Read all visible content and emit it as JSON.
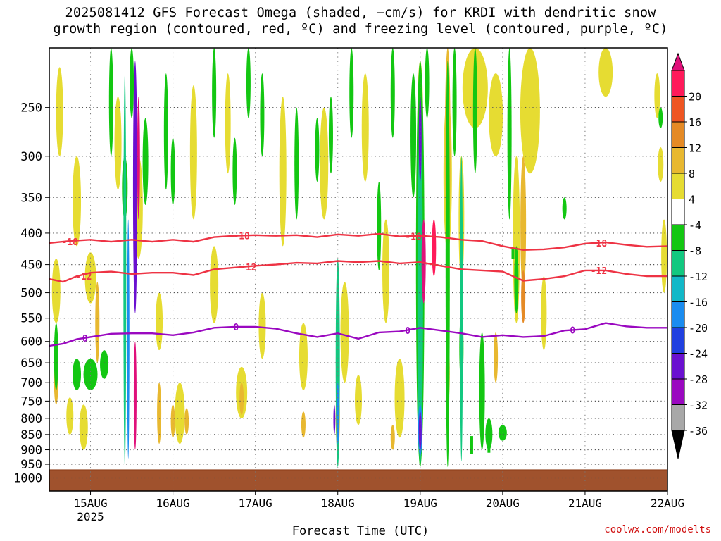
{
  "title": {
    "line1": "2025081412 GFS Forecast Omega (shaded, −cm/s) for KRDI with dendritic snow",
    "line2": "growth region (contoured, red, ºC) and freezing level (contoured, purple, ºC)"
  },
  "watermark": "coolwx.com/modelts",
  "chart_data": {
    "type": "heatmap",
    "title": "2025081412 GFS Forecast Omega (shaded, −cm/s) for KRDI with dendritic snow growth region (contoured, red, ºC) and freezing level (contoured, purple, ºC)",
    "xlabel": "Forecast Time (UTC)",
    "ylabel": "",
    "x_ticks": [
      "15AUG",
      "16AUG",
      "17AUG",
      "18AUG",
      "19AUG",
      "20AUG",
      "21AUG",
      "22AUG"
    ],
    "x_year_label": "2025",
    "x_range_hours": [
      -12,
      168
    ],
    "y_scale": "log-pressure",
    "y_range_hpa": [
      200,
      1050
    ],
    "y_ticks": [
      250,
      300,
      350,
      400,
      450,
      500,
      550,
      600,
      650,
      700,
      750,
      800,
      850,
      900,
      950,
      1000
    ],
    "ground_level_hpa": 970,
    "colorbar": {
      "levels": [
        20,
        16,
        12,
        8,
        4,
        -4,
        -8,
        -12,
        -16,
        -20,
        -24,
        -28,
        -32,
        -36
      ],
      "colors": [
        "#ff1a5a",
        "#ee5522",
        "#e58a25",
        "#e8b830",
        "#e6dc32",
        "#ffffff",
        "#13c712",
        "#12c880",
        "#12b8c8",
        "#1a8cf0",
        "#2040e0",
        "#6a10d0",
        "#9a08c0",
        "#a8a8a8",
        "#000000"
      ],
      "top_color": "#e0107a"
    },
    "contours": [
      {
        "name": "-18",
        "color": "#ee3344",
        "label_hours": [
          -8,
          42,
          92,
          146
        ],
        "points": [
          [
            -12,
            415
          ],
          [
            -6,
            412
          ],
          [
            0,
            410
          ],
          [
            6,
            413
          ],
          [
            12,
            410
          ],
          [
            18,
            413
          ],
          [
            24,
            410
          ],
          [
            30,
            413
          ],
          [
            36,
            406
          ],
          [
            42,
            404
          ],
          [
            48,
            403
          ],
          [
            54,
            404
          ],
          [
            60,
            403
          ],
          [
            66,
            406
          ],
          [
            72,
            402
          ],
          [
            78,
            404
          ],
          [
            84,
            401
          ],
          [
            90,
            405
          ],
          [
            96,
            404
          ],
          [
            102,
            406
          ],
          [
            108,
            410
          ],
          [
            114,
            412
          ],
          [
            120,
            420
          ],
          [
            126,
            426
          ],
          [
            132,
            425
          ],
          [
            138,
            422
          ],
          [
            144,
            416
          ],
          [
            150,
            414
          ],
          [
            156,
            418
          ],
          [
            162,
            421
          ],
          [
            168,
            420
          ]
        ]
      },
      {
        "name": "-12",
        "color": "#ee3344",
        "label_hours": [
          -4,
          44,
          146
        ],
        "points": [
          [
            -12,
            475
          ],
          [
            -8,
            480
          ],
          [
            -4,
            470
          ],
          [
            0,
            464
          ],
          [
            6,
            462
          ],
          [
            12,
            466
          ],
          [
            18,
            464
          ],
          [
            24,
            464
          ],
          [
            30,
            468
          ],
          [
            36,
            458
          ],
          [
            42,
            455
          ],
          [
            48,
            452
          ],
          [
            54,
            450
          ],
          [
            60,
            447
          ],
          [
            66,
            448
          ],
          [
            72,
            444
          ],
          [
            78,
            446
          ],
          [
            84,
            444
          ],
          [
            90,
            448
          ],
          [
            96,
            446
          ],
          [
            102,
            452
          ],
          [
            108,
            458
          ],
          [
            114,
            460
          ],
          [
            120,
            462
          ],
          [
            126,
            478
          ],
          [
            132,
            475
          ],
          [
            138,
            470
          ],
          [
            144,
            460
          ],
          [
            150,
            460
          ],
          [
            156,
            466
          ],
          [
            162,
            470
          ],
          [
            168,
            470
          ]
        ]
      },
      {
        "name": "0",
        "color": "#9a08c0",
        "label_hours": [
          -2,
          42,
          92,
          140
        ],
        "points": [
          [
            -12,
            610
          ],
          [
            -8,
            605
          ],
          [
            -4,
            595
          ],
          [
            0,
            590
          ],
          [
            6,
            583
          ],
          [
            12,
            582
          ],
          [
            18,
            582
          ],
          [
            24,
            586
          ],
          [
            30,
            580
          ],
          [
            36,
            570
          ],
          [
            42,
            568
          ],
          [
            48,
            568
          ],
          [
            54,
            572
          ],
          [
            60,
            582
          ],
          [
            66,
            590
          ],
          [
            72,
            582
          ],
          [
            78,
            594
          ],
          [
            84,
            580
          ],
          [
            90,
            578
          ],
          [
            96,
            570
          ],
          [
            102,
            576
          ],
          [
            108,
            582
          ],
          [
            114,
            590
          ],
          [
            120,
            586
          ],
          [
            126,
            590
          ],
          [
            132,
            588
          ],
          [
            138,
            576
          ],
          [
            144,
            573
          ],
          [
            150,
            560
          ],
          [
            156,
            567
          ],
          [
            162,
            570
          ],
          [
            168,
            570
          ]
        ]
      }
    ]
  }
}
